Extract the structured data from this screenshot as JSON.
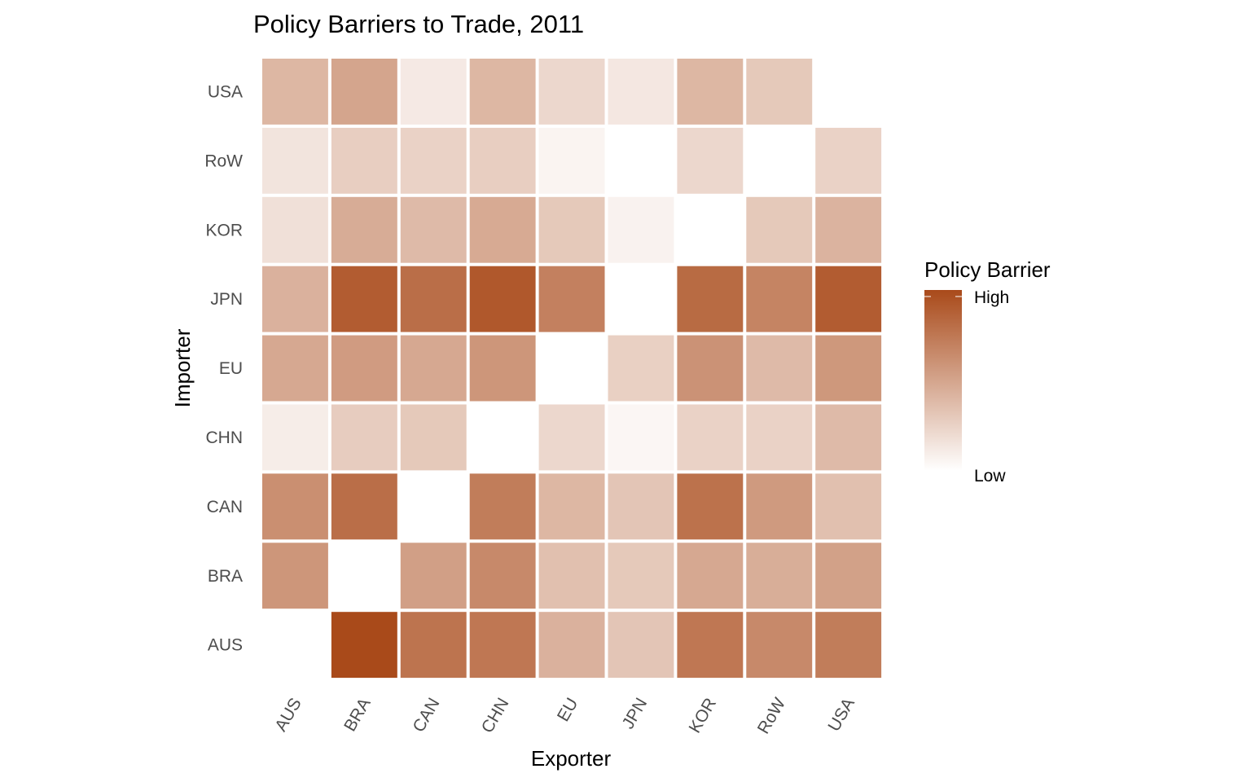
{
  "chart_data": {
    "type": "heatmap",
    "title": "Policy Barriers to Trade, 2011",
    "xlabel": "Exporter",
    "ylabel": "Importer",
    "x_categories": [
      "AUS",
      "BRA",
      "CAN",
      "CHN",
      "EU",
      "JPN",
      "KOR",
      "RoW",
      "USA"
    ],
    "y_categories": [
      "AUS",
      "BRA",
      "CAN",
      "CHN",
      "EU",
      "JPN",
      "KOR",
      "RoW",
      "USA"
    ],
    "z_note": "relative intensity 0 (Low) to 1 (High); null = no tile",
    "rows": [
      {
        "importer": "USA",
        "values": [
          0.4,
          0.5,
          0.12,
          0.4,
          0.22,
          0.13,
          0.4,
          0.3,
          null
        ]
      },
      {
        "importer": "RoW",
        "values": [
          0.15,
          0.27,
          0.25,
          0.27,
          0.06,
          0.0,
          0.22,
          null,
          0.25
        ]
      },
      {
        "importer": "KOR",
        "values": [
          0.17,
          0.46,
          0.38,
          0.47,
          0.3,
          0.07,
          null,
          0.3,
          0.42
        ]
      },
      {
        "importer": "JPN",
        "values": [
          0.43,
          0.9,
          0.8,
          0.92,
          0.7,
          null,
          0.82,
          0.68,
          0.9
        ]
      },
      {
        "importer": "EU",
        "values": [
          0.48,
          0.55,
          0.48,
          0.58,
          null,
          0.26,
          0.6,
          0.38,
          0.57
        ]
      },
      {
        "importer": "CHN",
        "values": [
          0.1,
          0.28,
          0.3,
          null,
          0.22,
          0.05,
          0.25,
          0.25,
          0.38
        ]
      },
      {
        "importer": "CAN",
        "values": [
          0.62,
          0.8,
          null,
          0.72,
          0.4,
          0.32,
          0.78,
          0.56,
          0.35
        ]
      },
      {
        "importer": "BRA",
        "values": [
          0.58,
          null,
          0.53,
          0.65,
          0.35,
          0.3,
          0.48,
          0.45,
          0.52
        ]
      },
      {
        "importer": "AUS",
        "values": [
          null,
          1.0,
          0.77,
          0.75,
          0.43,
          0.32,
          0.75,
          0.65,
          0.72
        ]
      }
    ],
    "colors": {
      "low": "#ffffff",
      "high": "#a94a1a"
    },
    "legend": {
      "title": "Policy Barrier",
      "high_label": "High",
      "low_label": "Low",
      "position": "right"
    },
    "grid": false
  }
}
